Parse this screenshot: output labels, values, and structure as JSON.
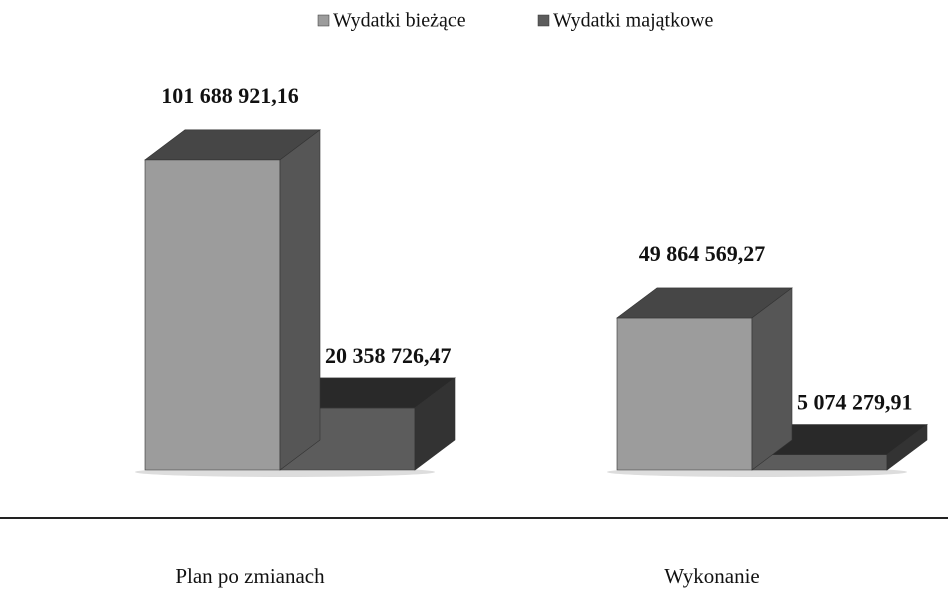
{
  "chart_data": {
    "type": "bar3d",
    "categories": [
      "Plan po zmianach",
      "Wykonanie"
    ],
    "series": [
      {
        "name": "Wydatki bieżące",
        "color": "#9c9c9c",
        "values": [
          101688921.16,
          49864569.27
        ],
        "value_labels": [
          "101 688 921,16",
          "49 864 569,27"
        ]
      },
      {
        "name": "Wydatki majątkowe",
        "color": "#5c5c5c",
        "values": [
          20358726.47,
          5074279.91
        ],
        "value_labels": [
          "20 358 726,47",
          "5 074 279,91"
        ]
      }
    ]
  }
}
